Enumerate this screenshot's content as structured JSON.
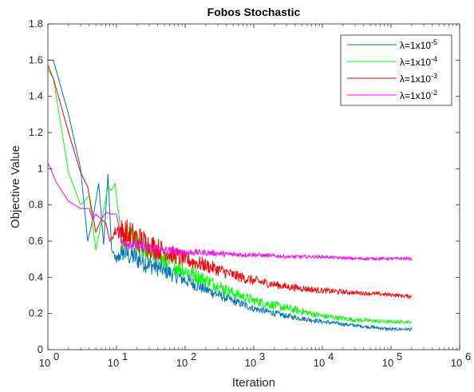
{
  "chart_data": {
    "type": "line",
    "title": "Fobos Stochastic",
    "xlabel": "Iteration",
    "ylabel": "Objective Value",
    "xscale": "log",
    "xlim": [
      1,
      1000000
    ],
    "ylim": [
      0,
      1.8
    ],
    "yticks": [
      "0",
      "0.2",
      "0.4",
      "0.6",
      "0.8",
      "1",
      "1.2",
      "1.4",
      "1.6",
      "1.8"
    ],
    "xticks": [
      {
        "base": "10",
        "exp": "0"
      },
      {
        "base": "10",
        "exp": "1"
      },
      {
        "base": "10",
        "exp": "2"
      },
      {
        "base": "10",
        "exp": "3"
      },
      {
        "base": "10",
        "exp": "4"
      },
      {
        "base": "10",
        "exp": "5"
      },
      {
        "base": "10",
        "exp": "6"
      }
    ],
    "grid": false,
    "legend_position": "top-right",
    "series": [
      {
        "name": "λ=1x10",
        "name_exp": "-5",
        "color": "#0072BD",
        "x": [
          1,
          1.2,
          2,
          3,
          3.8,
          4.5,
          5.5,
          6.5,
          7.5,
          8.5,
          10,
          12,
          15,
          20,
          30,
          50,
          100,
          200,
          500,
          1000,
          3000,
          10000,
          30000,
          100000,
          200000
        ],
        "values": [
          1.6,
          1.6,
          1.3,
          1.0,
          0.6,
          0.72,
          0.92,
          0.58,
          0.97,
          0.55,
          0.48,
          0.52,
          0.5,
          0.48,
          0.45,
          0.42,
          0.37,
          0.32,
          0.26,
          0.22,
          0.18,
          0.15,
          0.13,
          0.11,
          0.11
        ],
        "amp": [
          0,
          0,
          0,
          0,
          0,
          0,
          0,
          0,
          0,
          0,
          0.04,
          0.07,
          0.08,
          0.08,
          0.07,
          0.06,
          0.05,
          0.04,
          0.03,
          0.025,
          0.02,
          0.015,
          0.012,
          0.01,
          0.01
        ]
      },
      {
        "name": "λ=1x10",
        "name_exp": "-4",
        "color": "#00FF00",
        "x": [
          1,
          1.2,
          2,
          3,
          4,
          5,
          6,
          7.5,
          8.5,
          9.5,
          12,
          15,
          20,
          30,
          50,
          100,
          200,
          500,
          1000,
          3000,
          10000,
          30000,
          100000,
          200000
        ],
        "values": [
          1.55,
          1.5,
          0.98,
          0.8,
          0.85,
          0.55,
          0.7,
          0.9,
          0.88,
          0.92,
          0.55,
          0.6,
          0.55,
          0.52,
          0.47,
          0.42,
          0.37,
          0.3,
          0.26,
          0.22,
          0.18,
          0.16,
          0.15,
          0.15
        ],
        "amp": [
          0,
          0,
          0,
          0,
          0,
          0,
          0,
          0,
          0,
          0,
          0.06,
          0.08,
          0.09,
          0.08,
          0.07,
          0.06,
          0.05,
          0.04,
          0.035,
          0.03,
          0.02,
          0.015,
          0.012,
          0.012
        ]
      },
      {
        "name": "λ=1x10",
        "name_exp": "-3",
        "color": "#FF0000",
        "x": [
          1,
          1.2,
          2,
          3,
          3.8,
          5,
          6,
          7,
          8,
          10,
          12,
          15,
          20,
          30,
          50,
          100,
          200,
          500,
          1000,
          3000,
          10000,
          30000,
          100000,
          200000
        ],
        "values": [
          1.57,
          1.5,
          1.2,
          0.98,
          0.9,
          0.65,
          0.72,
          0.7,
          0.6,
          0.65,
          0.62,
          0.6,
          0.58,
          0.55,
          0.52,
          0.48,
          0.45,
          0.4,
          0.37,
          0.34,
          0.32,
          0.31,
          0.3,
          0.29
        ],
        "amp": [
          0,
          0,
          0,
          0,
          0,
          0,
          0,
          0,
          0,
          0.05,
          0.1,
          0.11,
          0.1,
          0.09,
          0.07,
          0.06,
          0.05,
          0.04,
          0.035,
          0.025,
          0.02,
          0.015,
          0.012,
          0.012
        ]
      },
      {
        "name": "λ=1x10",
        "name_exp": "-2",
        "color": "#FF00FF",
        "x": [
          1,
          1.1,
          1.3,
          2,
          3,
          4,
          4.5,
          5,
          6,
          7,
          8,
          10,
          12,
          15,
          20,
          30,
          50,
          100,
          200,
          500,
          1000,
          3000,
          10000,
          30000,
          100000,
          200000
        ],
        "values": [
          1.03,
          1.0,
          0.93,
          0.82,
          0.78,
          0.78,
          0.72,
          0.75,
          0.72,
          0.76,
          0.75,
          0.75,
          0.58,
          0.58,
          0.56,
          0.55,
          0.54,
          0.53,
          0.53,
          0.52,
          0.52,
          0.51,
          0.51,
          0.5,
          0.5,
          0.5
        ],
        "amp": [
          0,
          0,
          0,
          0,
          0,
          0,
          0,
          0,
          0,
          0,
          0,
          0,
          0.03,
          0.04,
          0.04,
          0.035,
          0.03,
          0.025,
          0.02,
          0.018,
          0.015,
          0.012,
          0.01,
          0.01,
          0.01,
          0.01
        ]
      }
    ]
  }
}
